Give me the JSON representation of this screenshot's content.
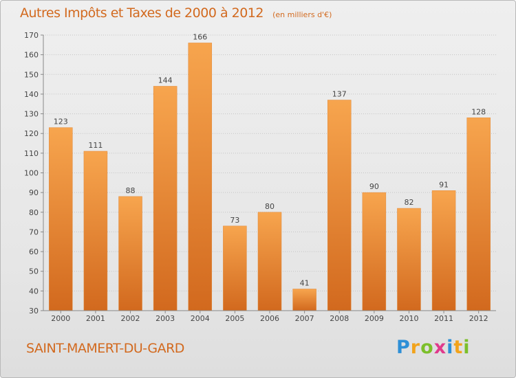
{
  "header": {
    "title": "Autres Impôts et Taxes de 2000 à 2012",
    "subtitle": "(en milliers d'€)"
  },
  "footer": {
    "location": "SAINT-MAMERT-DU-GARD"
  },
  "logo": {
    "text": "Proxiti",
    "letters": [
      {
        "char": "P",
        "color": "#2e8fd6"
      },
      {
        "char": "r",
        "color": "#f2a31b"
      },
      {
        "char": "o",
        "color": "#7cbf2b"
      },
      {
        "char": "x",
        "color": "#e03a8c"
      },
      {
        "char": "i",
        "color": "#2e8fd6"
      },
      {
        "char": "t",
        "color": "#f2a31b"
      },
      {
        "char": "i",
        "color": "#7cbf2b"
      }
    ]
  },
  "colors": {
    "accent": "#d2691e",
    "bar_top": "#f7a54e",
    "bar_bottom": "#d2691e"
  },
  "chart_data": {
    "type": "bar",
    "title": "Autres Impôts et Taxes de 2000 à 2012",
    "subtitle": "(en milliers d'€)",
    "xlabel": "",
    "ylabel": "",
    "categories": [
      "2000",
      "2001",
      "2002",
      "2003",
      "2004",
      "2005",
      "2006",
      "2007",
      "2008",
      "2009",
      "2010",
      "2011",
      "2012"
    ],
    "values": [
      123,
      111,
      88,
      144,
      166,
      73,
      80,
      41,
      137,
      90,
      82,
      91,
      128
    ],
    "ylim": [
      30,
      170
    ],
    "yticks": [
      30,
      40,
      50,
      60,
      70,
      80,
      90,
      100,
      110,
      120,
      130,
      140,
      150,
      160,
      170
    ],
    "data_labels": true,
    "grid": "horizontal dotted",
    "legend": "none"
  }
}
